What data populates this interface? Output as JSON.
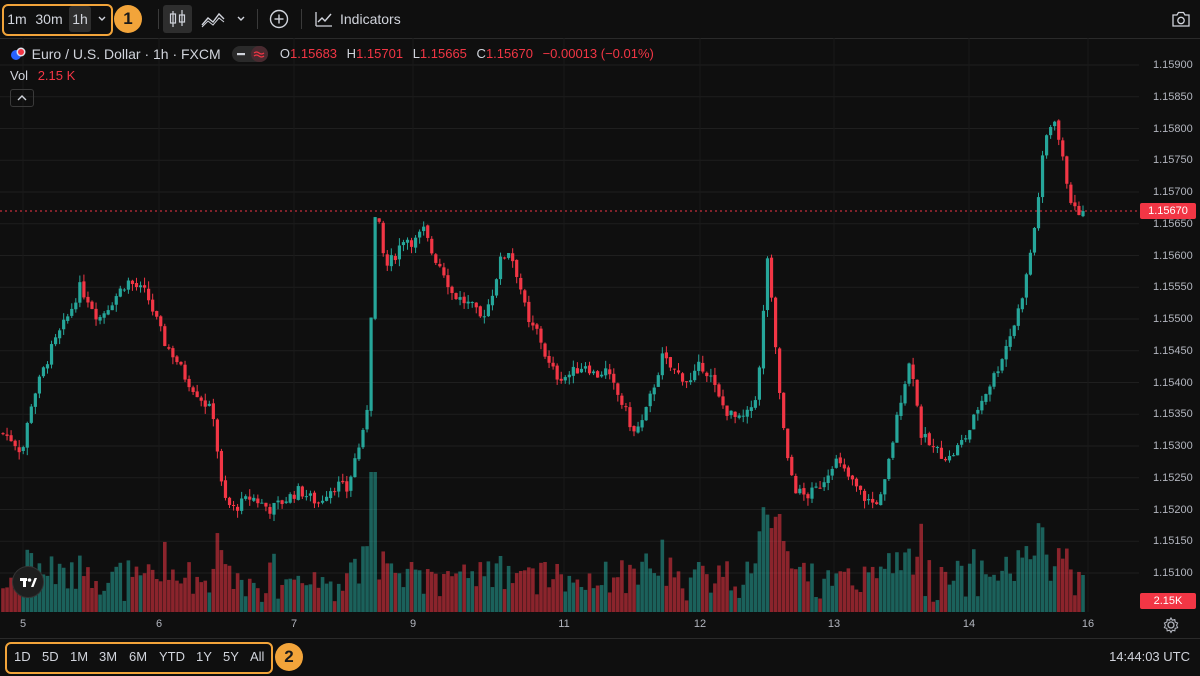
{
  "toolbar": {
    "intervals": [
      "1m",
      "30m",
      "1h"
    ],
    "active_interval": "1h",
    "marker_1": "1",
    "indicators_label": "Indicators",
    "icons": [
      "chevron-down-icon",
      "candles-icon",
      "area-chart-icon",
      "plus-circle-icon",
      "indicators-icon",
      "camera-icon"
    ]
  },
  "legend": {
    "symbol": "Euro / U.S. Dollar · 1h · FXCM",
    "o_label": "O",
    "o_value": "1.15683",
    "h_label": "H",
    "h_value": "1.15701",
    "l_label": "L",
    "l_value": "1.15665",
    "c_label": "C",
    "c_value": "1.15670",
    "change": "−0.00013 (−0.01%)"
  },
  "volume": {
    "label": "Vol",
    "value": "2.15 K"
  },
  "price_scale": {
    "labels": [
      "1.15900",
      "1.15850",
      "1.15800",
      "1.15750",
      "1.15700",
      "1.15650",
      "1.15600",
      "1.15550",
      "1.15500",
      "1.15450",
      "1.15400",
      "1.15350",
      "1.15300",
      "1.15250",
      "1.15200",
      "1.15150",
      "1.15100"
    ],
    "last_price": "1.15670",
    "volume_tag": "2.15K"
  },
  "time_axis": {
    "labels": [
      "5",
      "6",
      "7",
      "9",
      "11",
      "12",
      "13",
      "14",
      "16"
    ]
  },
  "bottom": {
    "ranges": [
      "1D",
      "5D",
      "1M",
      "3M",
      "6M",
      "YTD",
      "1Y",
      "5Y",
      "All"
    ],
    "marker_2": "2",
    "clock": "14:44:03 UTC"
  },
  "colors": {
    "up": "#26a69a",
    "down": "#f23645",
    "highlight": "#f2a43a",
    "background": "#0f0f0f"
  },
  "chart_data": {
    "type": "candlestick",
    "symbol": "EURUSD",
    "interval": "1h",
    "ylim": [
      1.15075,
      1.15925
    ],
    "last_price": 1.1567,
    "x": [
      "5",
      "6",
      "7",
      "9",
      "11",
      "12",
      "13",
      "14",
      "16"
    ],
    "close_path": [
      1.1532,
      1.1531,
      1.1529,
      1.1537,
      1.1541,
      1.1545,
      1.1548,
      1.1551,
      1.1555,
      1.1553,
      1.155,
      1.1552,
      1.1554,
      1.1556,
      1.1555,
      1.1554,
      1.155,
      1.1546,
      1.1544,
      1.1541,
      1.1539,
      1.1537,
      1.1535,
      1.1522,
      1.152,
      1.1521,
      1.1522,
      1.1521,
      1.152,
      1.1521,
      1.1522,
      1.1523,
      1.1522,
      1.1521,
      1.1523,
      1.1524,
      1.1523,
      1.1529,
      1.1533,
      1.1568,
      1.1558,
      1.156,
      1.1563,
      1.1562,
      1.1564,
      1.156,
      1.1558,
      1.1554,
      1.1553,
      1.1552,
      1.155,
      1.1553,
      1.1559,
      1.1561,
      1.1556,
      1.1549,
      1.1548,
      1.1543,
      1.1541,
      1.1541,
      1.1542,
      1.1543,
      1.1541,
      1.1542,
      1.1539,
      1.1536,
      1.1532,
      1.1534,
      1.1539,
      1.1544,
      1.1542,
      1.1541,
      1.154,
      1.1543,
      1.1541,
      1.1537,
      1.1535,
      1.1534,
      1.1535,
      1.1539,
      1.156,
      1.1542,
      1.1528,
      1.1523,
      1.1522,
      1.1523,
      1.1525,
      1.1528,
      1.1526,
      1.1524,
      1.1522,
      1.1521,
      1.1522,
      1.153,
      1.1538,
      1.1544,
      1.1532,
      1.153,
      1.1529,
      1.1528,
      1.153,
      1.1532,
      1.1536,
      1.1539,
      1.1542,
      1.1546,
      1.155,
      1.1556,
      1.1565,
      1.1578,
      1.1582,
      1.1574,
      1.1567,
      1.1567
    ],
    "volume_ylim": [
      0,
      180
    ]
  }
}
